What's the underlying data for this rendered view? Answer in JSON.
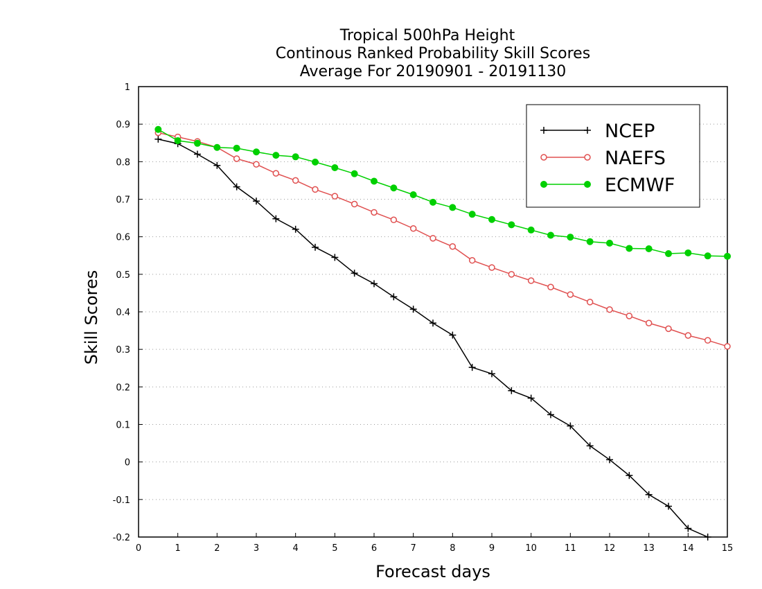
{
  "chart_data": {
    "type": "line",
    "title": [
      "Tropical 500hPa Height",
      "Continous Ranked Probability Skill Scores",
      "Average For 20190901 - 20191130"
    ],
    "xlabel": "Forecast days",
    "ylabel": "Skill Scores",
    "xlim": [
      0,
      15
    ],
    "ylim": [
      -0.2,
      1
    ],
    "xticks": [
      "0",
      "1",
      "2",
      "3",
      "4",
      "5",
      "6",
      "7",
      "8",
      "9",
      "10",
      "11",
      "12",
      "13",
      "14",
      "15"
    ],
    "yticks": [
      "1",
      "0.9",
      "0.8",
      "0.7",
      "0.6",
      "0.5",
      "0.4",
      "0.3",
      "0.2",
      "0.1",
      "0",
      "-0.1",
      "-0.2"
    ],
    "grid": "horizontal-dotted",
    "legend_position": "top-right",
    "x": [
      0.5,
      1,
      1.5,
      2,
      2.5,
      3,
      3.5,
      4,
      4.5,
      5,
      5.5,
      6,
      6.5,
      7,
      7.5,
      8,
      8.5,
      9,
      9.5,
      10,
      10.5,
      11,
      11.5,
      12,
      12.5,
      13,
      13.5,
      14,
      14.5,
      15
    ],
    "series": [
      {
        "name": "NCEP",
        "color": "#000000",
        "marker": "plus",
        "values": [
          0.86,
          0.848,
          0.82,
          0.79,
          0.733,
          0.695,
          0.648,
          0.62,
          0.572,
          0.545,
          0.503,
          0.475,
          0.44,
          0.407,
          0.37,
          0.338,
          0.252,
          0.235,
          0.19,
          0.17,
          0.126,
          0.096,
          0.043,
          0.006,
          -0.036,
          -0.087,
          -0.118,
          -0.177,
          -0.2,
          null
        ]
      },
      {
        "name": "NAEFS",
        "color": "#e05050",
        "marker": "open-circle",
        "values": [
          0.877,
          0.866,
          0.854,
          0.838,
          0.808,
          0.793,
          0.769,
          0.75,
          0.726,
          0.708,
          0.687,
          0.665,
          0.645,
          0.622,
          0.596,
          0.574,
          0.537,
          0.518,
          0.5,
          0.483,
          0.466,
          0.446,
          0.426,
          0.406,
          0.389,
          0.37,
          0.355,
          0.337,
          0.324,
          0.308
        ]
      },
      {
        "name": "ECMWF",
        "color": "#00d000",
        "marker": "filled-circle",
        "values": [
          0.886,
          0.856,
          0.849,
          0.838,
          0.836,
          0.826,
          0.817,
          0.813,
          0.799,
          0.784,
          0.768,
          0.748,
          0.73,
          0.712,
          0.692,
          0.678,
          0.66,
          0.646,
          0.632,
          0.618,
          0.604,
          0.599,
          0.587,
          0.583,
          0.569,
          0.568,
          0.555,
          0.557,
          0.549,
          0.548
        ]
      }
    ]
  }
}
